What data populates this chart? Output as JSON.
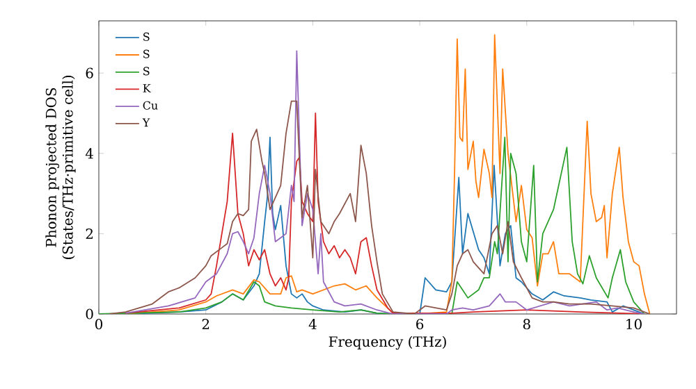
{
  "chart_data": {
    "type": "line",
    "xlabel": "Frequency (THz)",
    "ylabel": "Phonon projected DOS\n(States/THz·primitive cell)",
    "xlim": [
      0,
      10.8
    ],
    "ylim": [
      0,
      7.3
    ],
    "xticks": [
      0,
      2,
      4,
      6,
      8,
      10
    ],
    "yticks": [
      0,
      2,
      4,
      6
    ],
    "legend": "top left",
    "grid": false,
    "marker": "none",
    "line_style": "solid",
    "series": [
      {
        "name": "S",
        "color": "#1f77b4",
        "x": [
          0.5,
          1.5,
          2.0,
          2.3,
          2.5,
          2.7,
          2.9,
          3.0,
          3.1,
          3.15,
          3.2,
          3.25,
          3.3,
          3.4,
          3.5,
          3.6,
          3.7,
          3.8,
          3.9,
          4.0,
          4.2,
          4.6,
          4.9,
          5.2,
          5.5,
          6.0,
          6.1,
          6.3,
          6.5,
          6.6,
          6.73,
          6.8,
          6.9,
          7.1,
          7.2,
          7.3,
          7.39,
          7.5,
          7.6,
          7.7,
          7.8,
          7.9,
          8.1,
          8.3,
          8.5,
          8.7,
          9.0,
          9.2,
          9.5,
          9.6,
          9.8,
          10.1,
          10.2
        ],
        "values": [
          0,
          0.05,
          0.1,
          0.3,
          0.5,
          0.35,
          0.7,
          1.0,
          2.3,
          2.9,
          4.4,
          2.5,
          2.1,
          2.7,
          1.2,
          0.5,
          0.4,
          0.5,
          0.3,
          0.2,
          0.1,
          0.05,
          0.1,
          0.02,
          0,
          0,
          0.9,
          0.6,
          0.55,
          0.8,
          3.4,
          1.5,
          2.5,
          1.6,
          1.4,
          1.0,
          3.7,
          1.2,
          2.0,
          2.2,
          0.9,
          0.8,
          0.5,
          0.35,
          0.55,
          0.45,
          0.4,
          0.35,
          0.3,
          0.05,
          0.2,
          0.05,
          0
        ]
      },
      {
        "name": "S",
        "color": "#ff7f0e",
        "x": [
          0.5,
          1.5,
          2.0,
          2.2,
          2.5,
          2.7,
          2.9,
          3.0,
          3.2,
          3.4,
          3.5,
          3.6,
          3.7,
          3.8,
          4.0,
          4.2,
          4.4,
          4.6,
          4.8,
          5.0,
          5.2,
          5.5,
          6.0,
          6.5,
          6.6,
          6.65,
          6.7,
          6.75,
          6.8,
          6.85,
          6.9,
          7.0,
          7.05,
          7.1,
          7.2,
          7.3,
          7.35,
          7.4,
          7.5,
          7.55,
          7.65,
          7.8,
          7.9,
          8.0,
          8.1,
          8.2,
          8.3,
          8.4,
          8.5,
          8.6,
          8.8,
          9.0,
          9.13,
          9.2,
          9.3,
          9.4,
          9.45,
          9.5,
          9.6,
          9.73,
          9.8,
          9.9,
          10.0,
          10.1,
          10.2,
          10.3
        ],
        "values": [
          0,
          0.1,
          0.3,
          0.45,
          0.6,
          0.5,
          0.85,
          0.8,
          0.5,
          0.5,
          0.9,
          0.95,
          0.55,
          0.6,
          0.5,
          0.6,
          0.7,
          0.75,
          0.6,
          0.7,
          0.4,
          0.02,
          0,
          0.05,
          0.8,
          3.5,
          6.85,
          4.4,
          4.3,
          6.1,
          3.6,
          4.3,
          3.3,
          2.9,
          4.1,
          3.5,
          2.9,
          6.95,
          3.5,
          6.1,
          4.0,
          2.3,
          3.2,
          2.1,
          1.9,
          0.7,
          1.5,
          1.5,
          1.8,
          1.0,
          1.0,
          0.8,
          4.8,
          3.0,
          2.3,
          2.4,
          2.7,
          1.4,
          3.0,
          4.15,
          2.9,
          1.8,
          1.3,
          1.2,
          0.5,
          0
        ]
      },
      {
        "name": "S",
        "color": "#2ca02c",
        "x": [
          0,
          1.5,
          2.0,
          2.3,
          2.5,
          2.7,
          2.9,
          3.0,
          3.1,
          3.3,
          3.6,
          4.0,
          4.5,
          4.9,
          5.2,
          5.5,
          6.6,
          6.7,
          6.8,
          6.9,
          7.1,
          7.2,
          7.3,
          7.4,
          7.45,
          7.59,
          7.65,
          7.7,
          7.8,
          7.9,
          8.0,
          8.13,
          8.2,
          8.3,
          8.5,
          8.75,
          8.85,
          8.95,
          9.05,
          9.17,
          9.3,
          9.52,
          9.6,
          9.75,
          9.85,
          10.0,
          10.2
        ],
        "values": [
          0,
          0.05,
          0.15,
          0.3,
          0.5,
          0.35,
          0.8,
          0.7,
          0.3,
          0.2,
          0.15,
          0.1,
          0.05,
          0.1,
          0.02,
          0,
          0,
          0.8,
          0.6,
          0.4,
          0.6,
          0.9,
          0.9,
          1.8,
          1.5,
          4.4,
          1.3,
          4.0,
          3.5,
          1.8,
          1.3,
          3.7,
          0.8,
          2.0,
          2.6,
          4.15,
          1.8,
          1.0,
          0.75,
          1.45,
          0.9,
          0.4,
          0.9,
          1.6,
          0.8,
          0.3,
          0
        ]
      },
      {
        "name": "K",
        "color": "#d62728",
        "x": [
          0.5,
          1.5,
          2.0,
          2.1,
          2.2,
          2.3,
          2.4,
          2.5,
          2.6,
          2.7,
          2.8,
          2.9,
          3.0,
          3.1,
          3.2,
          3.3,
          3.4,
          3.5,
          3.55,
          3.6,
          3.7,
          3.75,
          3.8,
          3.9,
          4.0,
          4.05,
          4.1,
          4.2,
          4.3,
          4.4,
          4.5,
          4.6,
          4.7,
          4.8,
          4.9,
          5.0,
          5.1,
          5.2,
          5.4,
          5.5,
          6.6,
          7.0,
          8.0,
          9.0,
          10.2
        ],
        "values": [
          0.02,
          0.15,
          0.35,
          0.5,
          1.2,
          2.0,
          2.8,
          4.5,
          2.5,
          2.0,
          1.2,
          1.6,
          1.35,
          1.6,
          1.0,
          0.7,
          0.9,
          0.6,
          0.9,
          2.8,
          3.8,
          3.9,
          2.8,
          2.5,
          2.3,
          5.0,
          2.8,
          1.8,
          1.5,
          1.7,
          1.4,
          1.6,
          1.4,
          1.0,
          1.8,
          1.9,
          1.2,
          0.6,
          0.15,
          0.02,
          0.02,
          0.05,
          0.1,
          0.05,
          0
        ]
      },
      {
        "name": "Cu",
        "color": "#9467bd",
        "x": [
          0.5,
          1.3,
          1.8,
          2.0,
          2.2,
          2.4,
          2.5,
          2.6,
          2.7,
          2.8,
          2.9,
          3.0,
          3.1,
          3.2,
          3.3,
          3.4,
          3.5,
          3.6,
          3.65,
          3.7,
          3.8,
          3.9,
          4.0,
          4.1,
          4.15,
          4.2,
          4.4,
          4.6,
          4.9,
          5.2,
          5.5,
          6.5,
          6.6,
          6.8,
          7.0,
          7.3,
          7.5,
          7.6,
          7.8,
          8.0,
          8.5,
          8.8,
          9.3,
          9.5,
          9.7,
          10.0,
          10.2
        ],
        "values": [
          0.02,
          0.2,
          0.4,
          0.8,
          1.0,
          1.5,
          2.0,
          2.05,
          1.8,
          1.5,
          1.9,
          3.0,
          3.7,
          3.0,
          1.8,
          1.9,
          2.0,
          3.2,
          2.8,
          6.55,
          2.2,
          3.0,
          2.6,
          1.0,
          2.0,
          0.8,
          0.3,
          0.2,
          0.25,
          0.1,
          0,
          0,
          0.1,
          0.15,
          0.1,
          0.2,
          0.5,
          0.3,
          0.3,
          0.1,
          0.3,
          0.2,
          0.3,
          0.1,
          0.15,
          0.05,
          0
        ]
      },
      {
        "name": "Y",
        "color": "#8c564b",
        "x": [
          0.2,
          0.5,
          1.0,
          1.3,
          1.5,
          1.8,
          2.0,
          2.1,
          2.3,
          2.4,
          2.5,
          2.6,
          2.7,
          2.8,
          2.85,
          2.95,
          3.05,
          3.1,
          3.2,
          3.3,
          3.4,
          3.5,
          3.6,
          3.7,
          3.8,
          3.9,
          4.0,
          4.05,
          4.15,
          4.3,
          4.4,
          4.5,
          4.7,
          4.8,
          4.9,
          5.0,
          5.1,
          5.2,
          5.3,
          5.5,
          5.9,
          6.0,
          6.1,
          6.5,
          6.6,
          6.7,
          6.8,
          6.9,
          7.0,
          7.2,
          7.35,
          7.45,
          7.55,
          7.65,
          7.75,
          7.9,
          8.1,
          8.3,
          8.5,
          8.8,
          9.2,
          9.6,
          10.0,
          10.2,
          10.3
        ],
        "values": [
          0,
          0.05,
          0.25,
          0.55,
          0.65,
          0.9,
          1.2,
          1.45,
          1.65,
          1.75,
          2.3,
          2.5,
          2.45,
          2.6,
          4.3,
          4.6,
          3.8,
          3.5,
          2.6,
          2.9,
          3.2,
          4.5,
          5.3,
          5.3,
          2.4,
          3.2,
          1.4,
          3.6,
          2.3,
          2.0,
          2.3,
          2.5,
          3.0,
          2.3,
          4.2,
          3.5,
          2.2,
          1.3,
          0.5,
          0.05,
          0,
          0.1,
          0.2,
          0.1,
          0.5,
          1.2,
          1.5,
          1.6,
          1.3,
          1.0,
          2.0,
          2.2,
          1.5,
          2.3,
          1.3,
          0.9,
          0.4,
          0.3,
          0.3,
          0.25,
          0.25,
          0.2,
          0.15,
          0.05,
          0
        ]
      }
    ]
  }
}
